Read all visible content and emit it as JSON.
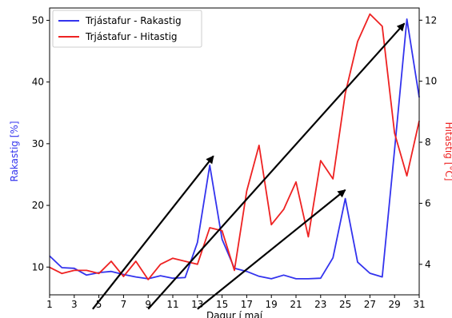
{
  "chart_data": {
    "type": "line",
    "xlabel": "Dagur í maí",
    "ylabel_left": "Rakastig [%]",
    "ylabel_right": "Hitastig [°C]",
    "x": [
      1,
      2,
      3,
      4,
      5,
      6,
      7,
      8,
      9,
      10,
      11,
      12,
      13,
      14,
      15,
      16,
      17,
      18,
      19,
      20,
      21,
      22,
      23,
      24,
      25,
      26,
      27,
      28,
      29,
      30,
      31
    ],
    "xticks": [
      "1",
      "3",
      "5",
      "7",
      "9",
      "11",
      "13",
      "15",
      "17",
      "19",
      "21",
      "23",
      "25",
      "27",
      "29",
      "31"
    ],
    "xticks_values": [
      1,
      3,
      5,
      7,
      9,
      11,
      13,
      15,
      17,
      19,
      21,
      23,
      25,
      27,
      29,
      31
    ],
    "xlim": [
      1,
      31
    ],
    "ylim_left": [
      5.5,
      52
    ],
    "yticks_left": [
      "10",
      "20",
      "30",
      "40",
      "50"
    ],
    "yticks_left_values": [
      10,
      20,
      30,
      40,
      50
    ],
    "ylim_right": [
      3.0,
      12.4
    ],
    "yticks_right": [
      "4",
      "6",
      "8",
      "10",
      "12"
    ],
    "yticks_right_values": [
      4,
      6,
      8,
      10,
      12
    ],
    "grid": false,
    "legend_position": "top-left",
    "series": [
      {
        "name": "Trjástafur - Rakastig",
        "axis": "left",
        "color": "#3333ee",
        "values": [
          11.8,
          9.9,
          9.8,
          8.7,
          9.1,
          9.3,
          8.8,
          8.4,
          8.1,
          8.6,
          8.2,
          8.3,
          14.0,
          26.5,
          14.5,
          9.8,
          9.3,
          8.5,
          8.1,
          8.7,
          8.1,
          8.1,
          8.2,
          11.5,
          21.1,
          10.8,
          9.0,
          8.4,
          29.0,
          50.2,
          37.5
        ]
      },
      {
        "name": "Trjástafur - Hitastig",
        "axis": "right",
        "color": "#ee2222",
        "values": [
          3.9,
          3.7,
          3.8,
          3.8,
          3.7,
          4.1,
          3.6,
          4.1,
          3.5,
          4.0,
          4.2,
          4.1,
          4.0,
          5.2,
          5.1,
          3.8,
          6.4,
          7.9,
          5.3,
          5.8,
          6.7,
          4.9,
          7.4,
          6.8,
          9.6,
          11.3,
          12.2,
          11.8,
          8.3,
          6.9,
          8.7
        ]
      }
    ],
    "annotations": [
      {
        "from": [
          4.5,
          3.2
        ],
        "to": [
          14.3,
          28.0
        ]
      },
      {
        "from": [
          9.0,
          3.2
        ],
        "to": [
          29.8,
          49.5
        ]
      },
      {
        "from": [
          13.0,
          3.2
        ],
        "to": [
          25.0,
          22.5
        ]
      }
    ]
  }
}
